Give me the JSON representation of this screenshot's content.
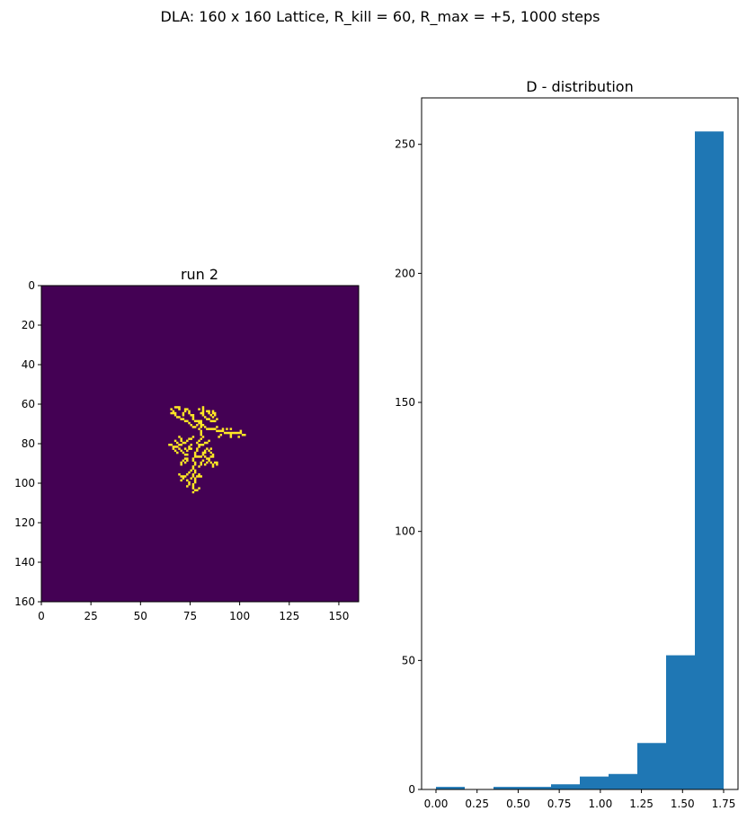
{
  "figure": {
    "suptitle": "DLA: 160 x 160 Lattice, R_kill = 60, R_max = +5, 1000 steps"
  },
  "chart_data": [
    {
      "type": "heatmap",
      "title": "run 2",
      "xlim": [
        0,
        160
      ],
      "ylim": [
        160,
        0
      ],
      "x_ticks": [
        "0",
        "25",
        "50",
        "75",
        "100",
        "125",
        "150"
      ],
      "y_ticks": [
        "0",
        "20",
        "40",
        "60",
        "80",
        "100",
        "120",
        "140",
        "160"
      ],
      "colors": {
        "background": "#440154",
        "cluster": "#fde725"
      },
      "cluster_cells": [
        [
          67,
          61
        ],
        [
          68,
          61
        ],
        [
          69,
          61
        ],
        [
          65,
          62
        ],
        [
          69,
          62
        ],
        [
          66,
          63
        ],
        [
          72,
          62
        ],
        [
          73,
          62
        ],
        [
          72,
          63
        ],
        [
          74,
          63
        ],
        [
          74,
          64
        ],
        [
          71,
          64
        ],
        [
          71,
          65
        ],
        [
          75,
          65
        ],
        [
          76,
          65
        ],
        [
          76,
          66
        ],
        [
          65,
          64
        ],
        [
          66,
          64
        ],
        [
          67,
          64
        ],
        [
          67,
          65
        ],
        [
          68,
          66
        ],
        [
          69,
          66
        ],
        [
          70,
          67
        ],
        [
          71,
          67
        ],
        [
          72,
          68
        ],
        [
          73,
          68
        ],
        [
          81,
          61
        ],
        [
          81,
          62
        ],
        [
          81,
          63
        ],
        [
          81,
          64
        ],
        [
          81,
          65
        ],
        [
          82,
          66
        ],
        [
          79,
          62
        ],
        [
          80,
          64
        ],
        [
          83,
          63
        ],
        [
          84,
          63
        ],
        [
          84,
          64
        ],
        [
          86,
          63
        ],
        [
          86,
          64
        ],
        [
          87,
          64
        ],
        [
          87,
          65
        ],
        [
          85,
          65
        ],
        [
          86,
          66
        ],
        [
          83,
          67
        ],
        [
          84,
          67
        ],
        [
          85,
          68
        ],
        [
          86,
          68
        ],
        [
          87,
          68
        ],
        [
          88,
          67
        ],
        [
          76,
          67
        ],
        [
          77,
          68
        ],
        [
          78,
          68
        ],
        [
          79,
          68
        ],
        [
          80,
          68
        ],
        [
          80,
          69
        ],
        [
          79,
          69
        ],
        [
          78,
          70
        ],
        [
          75,
          70
        ],
        [
          76,
          71
        ],
        [
          77,
          71
        ],
        [
          74,
          69
        ],
        [
          81,
          70
        ],
        [
          80,
          70
        ],
        [
          82,
          71
        ],
        [
          83,
          72
        ],
        [
          84,
          72
        ],
        [
          85,
          72
        ],
        [
          86,
          72
        ],
        [
          87,
          72
        ],
        [
          88,
          73
        ],
        [
          89,
          73
        ],
        [
          90,
          73
        ],
        [
          91,
          73
        ],
        [
          92,
          74
        ],
        [
          93,
          74
        ],
        [
          94,
          74
        ],
        [
          95,
          74
        ],
        [
          96,
          74
        ],
        [
          97,
          74
        ],
        [
          98,
          74
        ],
        [
          99,
          74
        ],
        [
          100,
          74
        ],
        [
          101,
          75
        ],
        [
          102,
          75
        ],
        [
          100,
          73
        ],
        [
          95,
          72
        ],
        [
          95,
          75
        ],
        [
          95,
          76
        ],
        [
          99,
          76
        ],
        [
          91,
          72
        ],
        [
          90,
          75
        ],
        [
          89,
          76
        ],
        [
          93,
          72
        ],
        [
          88,
          71
        ],
        [
          80,
          71
        ],
        [
          79,
          72
        ],
        [
          80,
          73
        ],
        [
          80,
          74
        ],
        [
          80,
          75
        ],
        [
          81,
          76
        ],
        [
          80,
          77
        ],
        [
          79,
          78
        ],
        [
          78,
          79
        ],
        [
          79,
          80
        ],
        [
          80,
          80
        ],
        [
          81,
          80
        ],
        [
          82,
          79
        ],
        [
          83,
          79
        ],
        [
          84,
          78
        ],
        [
          79,
          81
        ],
        [
          78,
          82
        ],
        [
          78,
          83
        ],
        [
          77,
          84
        ],
        [
          77,
          85
        ],
        [
          77,
          86
        ],
        [
          76,
          87
        ],
        [
          76,
          88
        ],
        [
          77,
          89
        ],
        [
          77,
          90
        ],
        [
          76,
          91
        ],
        [
          76,
          92
        ],
        [
          77,
          93
        ],
        [
          77,
          94
        ],
        [
          76,
          95
        ],
        [
          76,
          96
        ],
        [
          77,
          97
        ],
        [
          77,
          98
        ],
        [
          77,
          99
        ],
        [
          76,
          100
        ],
        [
          76,
          101
        ],
        [
          76,
          102
        ],
        [
          77,
          103
        ],
        [
          76,
          104
        ],
        [
          78,
          103
        ],
        [
          79,
          102
        ],
        [
          75,
          93
        ],
        [
          74,
          94
        ],
        [
          73,
          95
        ],
        [
          72,
          96
        ],
        [
          71,
          96
        ],
        [
          70,
          96
        ],
        [
          71,
          97
        ],
        [
          70,
          98
        ],
        [
          69,
          95
        ],
        [
          73,
          98
        ],
        [
          74,
          99
        ],
        [
          74,
          100
        ],
        [
          73,
          101
        ],
        [
          75,
          97
        ],
        [
          78,
          96
        ],
        [
          79,
          96
        ],
        [
          80,
          96
        ],
        [
          79,
          95
        ],
        [
          76,
          76
        ],
        [
          75,
          77
        ],
        [
          74,
          77
        ],
        [
          73,
          78
        ],
        [
          72,
          79
        ],
        [
          71,
          79
        ],
        [
          70,
          80
        ],
        [
          69,
          80
        ],
        [
          68,
          81
        ],
        [
          67,
          81
        ],
        [
          66,
          81
        ],
        [
          65,
          80
        ],
        [
          64,
          80
        ],
        [
          70,
          78
        ],
        [
          70,
          77
        ],
        [
          69,
          76
        ],
        [
          67,
          78
        ],
        [
          68,
          79
        ],
        [
          66,
          82
        ],
        [
          67,
          83
        ],
        [
          68,
          84
        ],
        [
          69,
          82
        ],
        [
          70,
          83
        ],
        [
          71,
          84
        ],
        [
          72,
          85
        ],
        [
          73,
          85
        ],
        [
          72,
          82
        ],
        [
          73,
          83
        ],
        [
          74,
          82
        ],
        [
          75,
          82
        ],
        [
          74,
          81
        ],
        [
          75,
          80
        ],
        [
          73,
          87
        ],
        [
          73,
          88
        ],
        [
          72,
          87
        ],
        [
          71,
          88
        ],
        [
          70,
          89
        ],
        [
          70,
          90
        ],
        [
          72,
          89
        ],
        [
          78,
          86
        ],
        [
          79,
          86
        ],
        [
          80,
          86
        ],
        [
          81,
          85
        ],
        [
          82,
          86
        ],
        [
          83,
          87
        ],
        [
          84,
          87
        ],
        [
          85,
          86
        ],
        [
          86,
          86
        ],
        [
          84,
          88
        ],
        [
          85,
          89
        ],
        [
          86,
          90
        ],
        [
          86,
          91
        ],
        [
          87,
          89
        ],
        [
          88,
          89
        ],
        [
          88,
          90
        ],
        [
          83,
          89
        ],
        [
          82,
          90
        ],
        [
          81,
          88
        ],
        [
          80,
          89
        ],
        [
          80,
          90
        ],
        [
          79,
          91
        ],
        [
          81,
          84
        ],
        [
          82,
          83
        ],
        [
          82,
          84
        ],
        [
          83,
          82
        ],
        [
          84,
          83
        ],
        [
          85,
          84
        ],
        [
          86,
          85
        ],
        [
          85,
          82
        ]
      ]
    },
    {
      "type": "bar",
      "title": "D - distribution",
      "xlim": [
        -0.0875,
        1.8375
      ],
      "ylim": [
        0,
        268
      ],
      "x_ticks": [
        "0.00",
        "0.25",
        "0.50",
        "0.75",
        "1.00",
        "1.25",
        "1.50",
        "1.75"
      ],
      "y_ticks": [
        "0",
        "50",
        "100",
        "150",
        "200",
        "250"
      ],
      "color": "#1f77b4",
      "bin_edges": [
        0.0,
        0.175,
        0.35,
        0.525,
        0.7,
        0.875,
        1.05,
        1.225,
        1.4,
        1.575,
        1.75
      ],
      "values": [
        1,
        0,
        1,
        1,
        2,
        5,
        6,
        18,
        52,
        255
      ]
    }
  ]
}
